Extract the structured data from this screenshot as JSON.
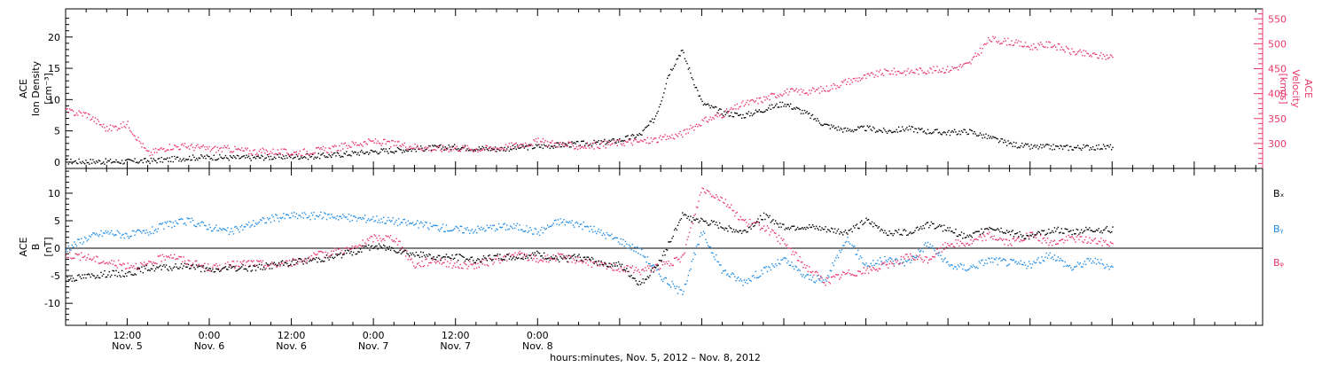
{
  "chart_data": [
    {
      "type": "scatter",
      "panel": "top",
      "ylabel_left": [
        "ACE",
        "Ion Density",
        "[cm⁻³]"
      ],
      "ylabel_right": [
        "ACE",
        "Velocity",
        "[km/s]"
      ],
      "ylim_left": [
        -1,
        24.5
      ],
      "ylim_right": [
        250,
        570
      ],
      "yticks_left": [
        0,
        5,
        10,
        15,
        20
      ],
      "yticks_right": [
        300,
        350,
        400,
        450,
        500,
        550
      ],
      "series": [
        {
          "color": "#000000",
          "axis": "left",
          "x": [
            0,
            3,
            6,
            9,
            12,
            15,
            18,
            21,
            24,
            27,
            30,
            33,
            36,
            39,
            42,
            45,
            48,
            51,
            54,
            57,
            60,
            63,
            66,
            69,
            72,
            75,
            78,
            81,
            84,
            86,
            87,
            88,
            90,
            93,
            96,
            99,
            102,
            105,
            108,
            111,
            114,
            117,
            120,
            123,
            126,
            129,
            132,
            135,
            138,
            141,
            144,
            147,
            150,
            153
          ],
          "y": [
            0.2,
            0.2,
            0.2,
            0.2,
            0.3,
            0.5,
            0.8,
            0.9,
            0.8,
            0.8,
            0.9,
            1.0,
            1.0,
            1.2,
            1.5,
            1.8,
            2.0,
            2.2,
            2.4,
            2.5,
            2.3,
            2.2,
            2.4,
            2.6,
            2.8,
            3.0,
            3.2,
            3.6,
            4.5,
            7.0,
            10.0,
            14.0,
            18.0,
            9.5,
            8.0,
            7.5,
            8.5,
            9.5,
            8.0,
            6.0,
            5.2,
            5.5,
            5.0,
            5.5,
            5.0,
            4.8,
            5.0,
            4.0,
            3.0,
            2.5,
            2.5,
            2.4,
            2.5,
            2.5
          ]
        },
        {
          "color": "#e8386b",
          "axis": "right",
          "x": [
            0,
            3,
            6,
            9,
            12,
            15,
            18,
            21,
            24,
            27,
            30,
            33,
            36,
            39,
            42,
            45,
            48,
            51,
            54,
            57,
            60,
            63,
            66,
            69,
            72,
            75,
            78,
            81,
            84,
            87,
            90,
            93,
            96,
            99,
            102,
            105,
            108,
            111,
            114,
            117,
            120,
            123,
            126,
            129,
            132,
            135,
            138,
            141,
            144,
            147,
            150,
            153
          ],
          "y": [
            365,
            360,
            330,
            340,
            280,
            295,
            295,
            290,
            290,
            285,
            285,
            282,
            286,
            290,
            300,
            305,
            300,
            295,
            290,
            292,
            290,
            292,
            298,
            305,
            300,
            295,
            298,
            303,
            305,
            310,
            320,
            345,
            360,
            380,
            390,
            405,
            405,
            410,
            425,
            435,
            445,
            445,
            448,
            450,
            460,
            510,
            505,
            495,
            500,
            485,
            478,
            475
          ]
        }
      ]
    },
    {
      "type": "scatter",
      "panel": "bottom",
      "ylabel": [
        "ACE",
        "B",
        "[nT]"
      ],
      "ylim": [
        -14,
        14.5
      ],
      "yticks": [
        -10,
        -5,
        0,
        5,
        10
      ],
      "zero_line": true,
      "series": [
        {
          "name": "Bₓ",
          "color": "#000000",
          "x": [
            0,
            3,
            6,
            9,
            12,
            15,
            18,
            21,
            24,
            27,
            30,
            33,
            36,
            39,
            42,
            45,
            48,
            51,
            54,
            57,
            60,
            63,
            66,
            69,
            72,
            75,
            78,
            81,
            84,
            87,
            90,
            93,
            96,
            99,
            102,
            105,
            108,
            111,
            114,
            117,
            120,
            123,
            126,
            129,
            132,
            135,
            138,
            141,
            144,
            147,
            150,
            153
          ],
          "y": [
            -5.5,
            -5.0,
            -4.5,
            -4.5,
            -3.5,
            -3.5,
            -3.0,
            -4.0,
            -3.5,
            -3.5,
            -3.0,
            -2.5,
            -2.0,
            -1.5,
            -0.5,
            0.5,
            0.0,
            -1.0,
            -1.5,
            -1.5,
            -2.0,
            -1.5,
            -1.5,
            -1.0,
            -2.0,
            -1.5,
            -2.5,
            -3.0,
            -6.5,
            -2.0,
            6.0,
            5.0,
            4.0,
            3.0,
            6.0,
            4.0,
            4.0,
            3.5,
            3.0,
            5.0,
            3.0,
            3.0,
            4.5,
            3.5,
            2.0,
            4.0,
            3.0,
            2.0,
            3.5,
            3.0,
            3.5,
            3.5
          ]
        },
        {
          "name": "Bᵧ",
          "color": "#1f8ce6",
          "x": [
            0,
            3,
            6,
            9,
            12,
            15,
            18,
            21,
            24,
            27,
            30,
            33,
            36,
            39,
            42,
            45,
            48,
            51,
            54,
            57,
            60,
            63,
            66,
            69,
            72,
            75,
            78,
            81,
            84,
            87,
            90,
            93,
            96,
            99,
            102,
            105,
            108,
            111,
            114,
            117,
            120,
            123,
            126,
            129,
            132,
            135,
            138,
            141,
            144,
            147,
            150,
            153
          ],
          "y": [
            0.0,
            2.0,
            3.0,
            2.5,
            3.0,
            4.5,
            5.0,
            4.0,
            3.0,
            4.5,
            5.5,
            6.0,
            6.0,
            6.0,
            5.5,
            5.5,
            5.0,
            4.5,
            4.0,
            3.5,
            3.5,
            4.0,
            4.0,
            3.0,
            5.0,
            4.5,
            3.0,
            1.5,
            -0.5,
            -5.0,
            -8.0,
            3.0,
            -4.0,
            -6.0,
            -4.0,
            -2.0,
            -5.0,
            -6.0,
            2.0,
            -3.0,
            -2.0,
            -2.5,
            1.0,
            -3.0,
            -3.5,
            -2.0,
            -2.5,
            -3.0,
            -1.0,
            -3.5,
            -2.0,
            -3.5
          ]
        },
        {
          "name": "Bᵩ",
          "color": "#e8386b",
          "x": [
            0,
            3,
            6,
            9,
            12,
            15,
            18,
            21,
            24,
            27,
            30,
            33,
            36,
            39,
            42,
            45,
            48,
            51,
            54,
            57,
            60,
            63,
            66,
            69,
            72,
            75,
            78,
            81,
            84,
            87,
            90,
            93,
            96,
            99,
            102,
            105,
            108,
            111,
            114,
            117,
            120,
            123,
            126,
            129,
            132,
            135,
            138,
            141,
            144,
            147,
            150,
            153
          ],
          "y": [
            -1.0,
            -1.5,
            -2.5,
            -3.0,
            -3.0,
            -1.0,
            -2.5,
            -3.5,
            -3.0,
            -2.5,
            -3.0,
            -2.5,
            -1.5,
            -0.5,
            0.0,
            2.0,
            2.0,
            -3.0,
            -2.0,
            -3.0,
            -3.0,
            -2.0,
            -1.0,
            -2.0,
            -1.5,
            -2.0,
            -3.0,
            -3.5,
            -4.0,
            -3.0,
            -2.0,
            11.0,
            9.0,
            5.0,
            4.0,
            1.0,
            -3.0,
            -6.0,
            -4.5,
            -4.0,
            -3.0,
            -1.5,
            -2.0,
            1.0,
            1.0,
            2.5,
            1.0,
            2.5,
            1.0,
            2.0,
            1.5,
            1.0
          ]
        }
      ],
      "legend": [
        "Bₓ",
        "Bᵧ",
        "Bᵩ"
      ],
      "legend_placement": "right"
    }
  ],
  "x_axis": {
    "range_hours": [
      0,
      175
    ],
    "ticks": [
      {
        "h": 9,
        "l1": "12:00",
        "l2": "Nov. 5"
      },
      {
        "h": 21,
        "l1": "0:00",
        "l2": "Nov. 6"
      },
      {
        "h": 33,
        "l1": "12:00",
        "l2": "Nov. 6"
      },
      {
        "h": 45,
        "l1": "0:00",
        "l2": "Nov. 7"
      },
      {
        "h": 57,
        "l1": "12:00",
        "l2": "Nov. 7"
      },
      {
        "h": 69,
        "l1": "0:00",
        "l2": "Nov. 8"
      }
    ],
    "xlabel": "hours:minutes, Nov.  5, 2012 – Nov.  8, 2012"
  },
  "colors": {
    "black": "#000000",
    "pink": "#e8386b",
    "blue": "#1f8ce6"
  }
}
